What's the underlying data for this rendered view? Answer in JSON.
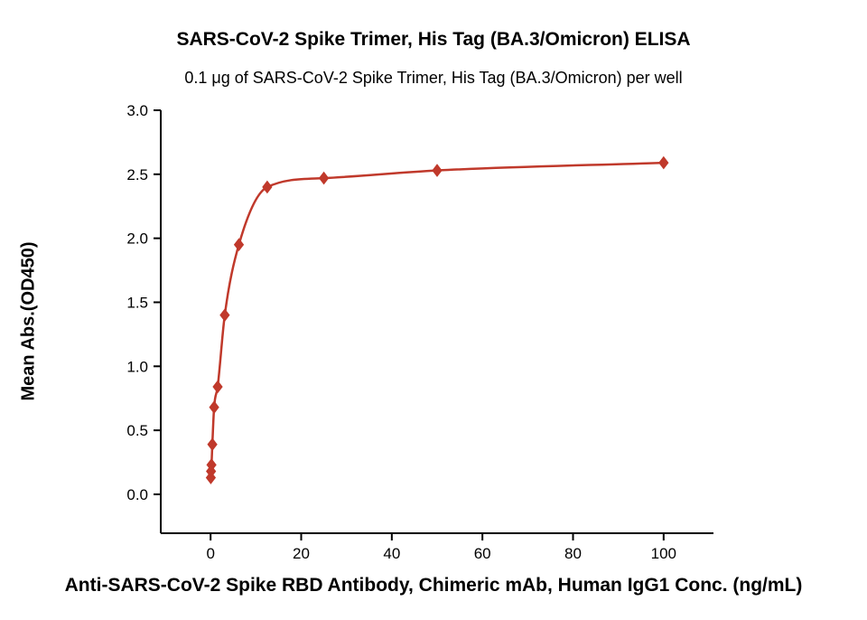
{
  "chart_data": {
    "type": "scatter",
    "title": "SARS-CoV-2 Spike Trimer, His Tag (BA.3/Omicron) ELISA",
    "subtitle": "0.1 μg of SARS-CoV-2 Spike Trimer, His Tag (BA.3/Omicron) per well",
    "xlabel": "Anti-SARS-CoV-2 Spike RBD Antibody, Chimeric mAb, Human IgG1 Conc. (ng/mL)",
    "ylabel": "Mean Abs.(OD450)",
    "x": [
      0.049,
      0.098,
      0.195,
      0.391,
      0.781,
      1.563,
      3.125,
      6.25,
      12.5,
      25,
      50,
      100
    ],
    "y": [
      0.13,
      0.18,
      0.23,
      0.39,
      0.68,
      0.84,
      1.4,
      1.95,
      2.4,
      2.47,
      2.53,
      2.59
    ],
    "x_ticks": [
      0,
      20,
      40,
      60,
      80,
      100
    ],
    "x_tick_labels": [
      "0",
      "20",
      "40",
      "60",
      "80",
      "100"
    ],
    "y_ticks": [
      0.0,
      0.5,
      1.0,
      1.5,
      2.0,
      2.5,
      3.0
    ],
    "y_tick_labels": [
      "0.0",
      "0.5",
      "1.0",
      "1.5",
      "2.0",
      "2.5",
      "3.0"
    ],
    "xlim": [
      -11,
      111
    ],
    "ylim": [
      -0.304,
      3.0
    ],
    "grid": false,
    "legend": "none",
    "line_color": "#c0392b",
    "marker": "diamond",
    "marker_color": "#c0392b",
    "axis_color": "#000000",
    "text_color": "#000000"
  }
}
